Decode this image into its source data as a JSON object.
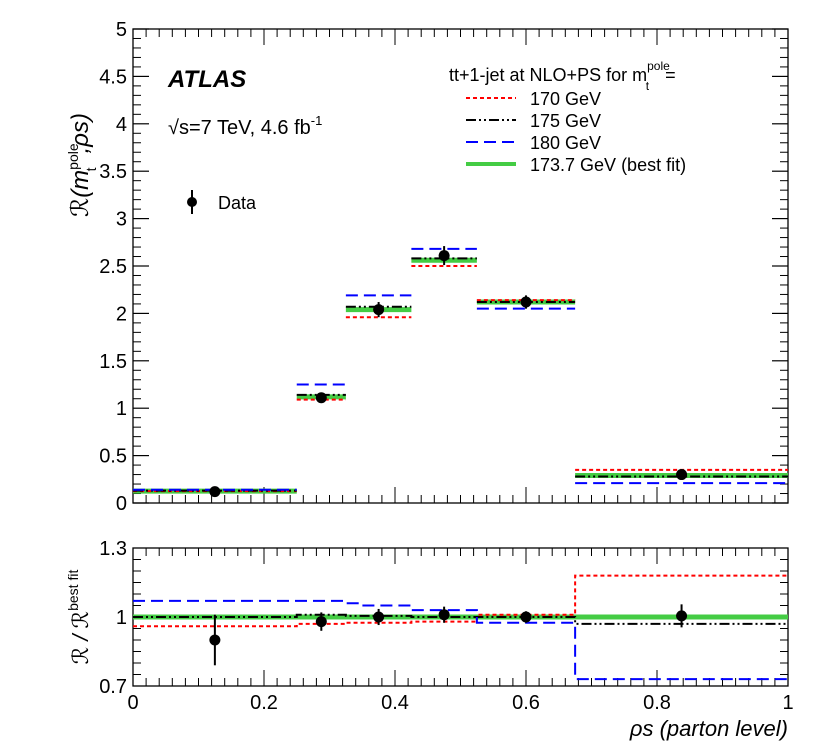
{
  "chart_data": [
    {
      "type": "line",
      "panel": "top",
      "experiment": "ATLAS",
      "energy_label": "√s=7 TeV, 4.6 fb",
      "energy_sup": "-1",
      "ylabel": "ℛ(m",
      "ylabel_sup": "pole",
      "ylabel_sub": "t",
      "ylabel_end": ",ρs)",
      "ylim": [
        0,
        5
      ],
      "yticks": [
        0,
        0.5,
        1,
        1.5,
        2,
        2.5,
        3,
        3.5,
        4,
        4.5,
        5
      ],
      "ytick_labels": [
        "0",
        "0.5",
        "1",
        "1.5",
        "2",
        "2.5",
        "3",
        "3.5",
        "4",
        "4.5",
        "5"
      ],
      "xlim": [
        0,
        1
      ],
      "bin_edges": [
        0,
        0.25,
        0.325,
        0.425,
        0.525,
        0.675,
        1.0
      ],
      "legend_title": "tt+1-jet at NLO+PS for m",
      "legend_title_sup": "pole",
      "legend_title_sub": "t",
      "legend_title_end": "=",
      "data_label": "Data",
      "series": [
        {
          "name": "170 GeV",
          "color": "#ff0000",
          "style": "dotted",
          "values": [
            0.125,
            1.09,
            1.96,
            2.5,
            2.14,
            0.35
          ]
        },
        {
          "name": "175 GeV",
          "color": "#000000",
          "style": "dashdot",
          "values": [
            0.13,
            1.14,
            2.07,
            2.58,
            2.12,
            0.28
          ]
        },
        {
          "name": "180 GeV",
          "color": "#0000ff",
          "style": "dashed",
          "values": [
            0.14,
            1.25,
            2.19,
            2.68,
            2.05,
            0.21
          ]
        },
        {
          "name": "173.7 GeV (best fit)",
          "color": "#44cc44",
          "style": "solid",
          "values": [
            0.125,
            1.12,
            2.04,
            2.56,
            2.12,
            0.29
          ]
        }
      ],
      "data": {
        "x": [
          0.125,
          0.2875,
          0.375,
          0.475,
          0.6,
          0.8375
        ],
        "y": [
          0.12,
          1.11,
          2.04,
          2.61,
          2.12,
          0.3
        ],
        "err": [
          0.03,
          0.05,
          0.08,
          0.1,
          0.07,
          0.04
        ]
      }
    },
    {
      "type": "line",
      "panel": "bottom",
      "ylabel": "ℛ / ℛ",
      "ylabel_sup": "best fit",
      "xlabel": "ρs (parton level)",
      "ylim": [
        0.7,
        1.3
      ],
      "yticks": [
        0.7,
        1.0,
        1.3
      ],
      "ytick_labels": [
        "0.7",
        "1",
        "1.3"
      ],
      "xlim": [
        0,
        1
      ],
      "xticks": [
        0,
        0.2,
        0.4,
        0.6,
        0.8,
        1
      ],
      "xtick_labels": [
        "0",
        "0.2",
        "0.4",
        "0.6",
        "0.8",
        "1"
      ],
      "steps": [
        {
          "name": "170 GeV",
          "color": "#ff0000",
          "style": "dotted",
          "edges": [
            0,
            0.25,
            0.325,
            0.425,
            0.525,
            0.675,
            1.0
          ],
          "values": [
            0.96,
            0.97,
            0.975,
            0.98,
            1.01,
            1.18
          ]
        },
        {
          "name": "175 GeV",
          "color": "#000000",
          "style": "dashdot",
          "edges": [
            0,
            0.25,
            0.325,
            0.425,
            0.525,
            0.675,
            1.0
          ],
          "values": [
            1.0,
            1.01,
            1.005,
            1.0,
            1.0,
            0.97
          ]
        },
        {
          "name": "180 GeV",
          "color": "#0000ff",
          "style": "dashed",
          "edges": [
            0,
            0.25,
            0.325,
            0.35,
            0.425,
            0.525,
            0.675,
            1.0
          ],
          "values": [
            1.07,
            1.07,
            1.06,
            1.05,
            1.03,
            0.975,
            0.73
          ]
        },
        {
          "name": "173.7 GeV (best fit)",
          "color": "#44cc44",
          "style": "solid",
          "edges": [
            0,
            1.0
          ],
          "values": [
            1.0
          ]
        }
      ],
      "data": {
        "x": [
          0.125,
          0.2875,
          0.375,
          0.475,
          0.6,
          0.8375
        ],
        "y": [
          0.9,
          0.98,
          1.0,
          1.01,
          1.0,
          1.005
        ],
        "err": [
          0.11,
          0.04,
          0.035,
          0.035,
          0.025,
          0.05
        ]
      }
    }
  ]
}
